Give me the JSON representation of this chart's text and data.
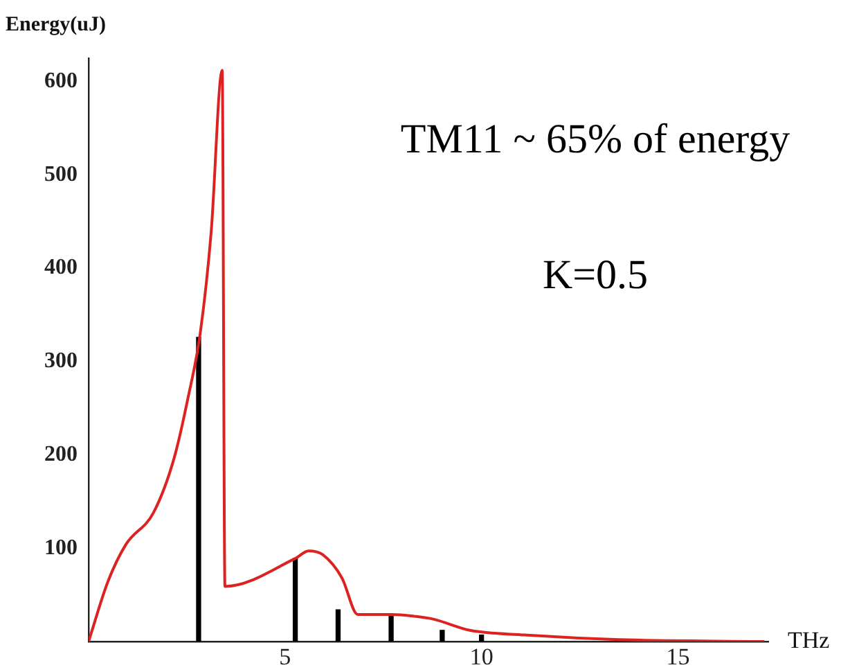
{
  "chart_data": {
    "type": "line",
    "xlabel": "THz",
    "ylabel": "Energy(uJ)",
    "annotations": [
      "TM11 ~ 65% of energy",
      "K=0.5"
    ],
    "xlim": [
      0,
      17.3
    ],
    "ylim": [
      0,
      625
    ],
    "xticks": [
      5,
      10,
      15
    ],
    "yticks": [
      100,
      200,
      300,
      400,
      500,
      600
    ],
    "grid": false,
    "legend": false,
    "marker": "none",
    "line_style": "solid",
    "series": [
      {
        "color": "#dd2222",
        "x": [
          0,
          0.49,
          0.95,
          1.65,
          2.18,
          2.53,
          2.84,
          3.12,
          3.4,
          3.47,
          5.26,
          5.6,
          5.96,
          6.45,
          6.85,
          7.72,
          8.3,
          8.77,
          9.7,
          11.1,
          13.5,
          17.2
        ],
        "values": [
          0,
          64,
          104,
          138,
          197,
          261,
          330,
          439,
          612,
          59,
          89,
          97,
          93,
          68,
          29,
          29,
          27,
          24,
          12,
          7,
          2,
          0
        ]
      },
      {
        "type": "bar",
        "color": "#000000",
        "x": [
          2.8,
          5.26,
          6.35,
          7.7,
          9.0,
          10.0
        ],
        "values": [
          326,
          89,
          34,
          27,
          12,
          7
        ]
      }
    ]
  }
}
